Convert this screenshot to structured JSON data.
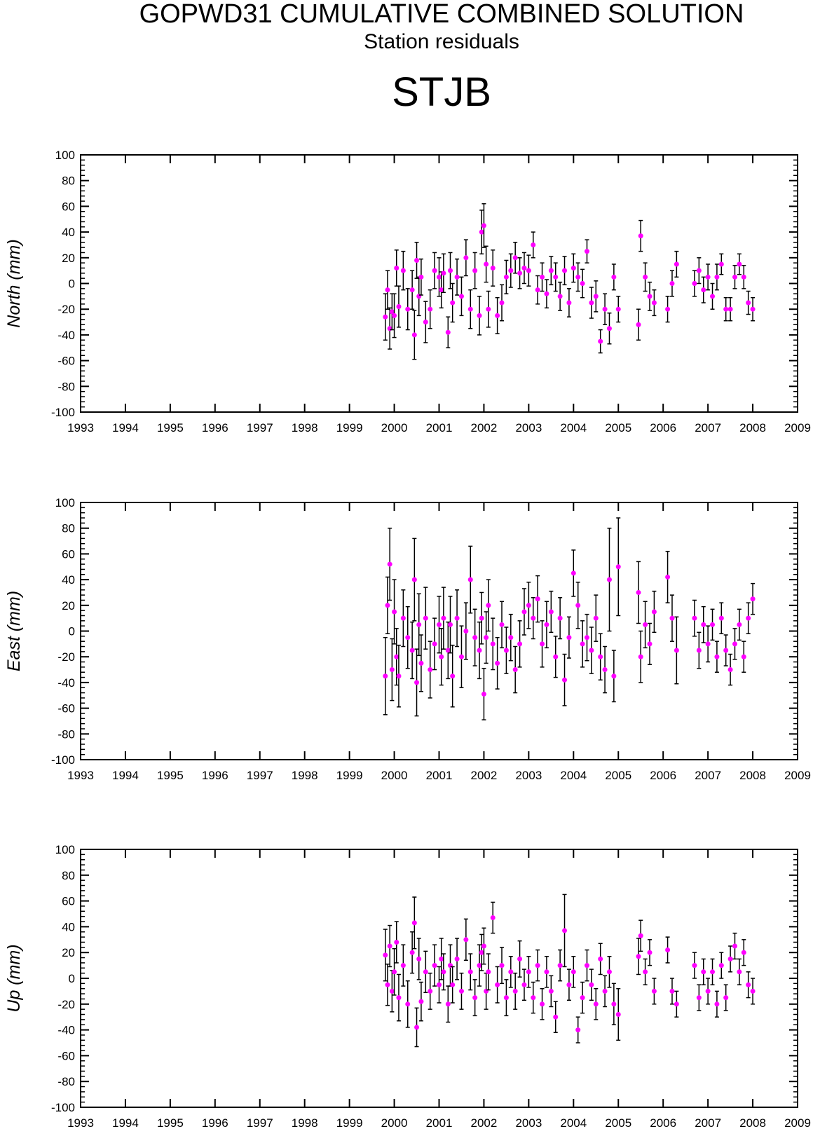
{
  "header": {
    "title": "GOPWD31 CUMULATIVE COMBINED SOLUTION",
    "subtitle": "Station residuals",
    "station": "STJB"
  },
  "colors": {
    "marker": "#ff00ff",
    "errorbar": "#000000",
    "axis": "#000000"
  },
  "chart_data": [
    {
      "type": "scatter",
      "component": "north",
      "ylabel": "North (mm)",
      "xlim": [
        1993,
        2009
      ],
      "ylim": [
        -100,
        100
      ],
      "x_ticks": [
        1993,
        1994,
        1995,
        1996,
        1997,
        1998,
        1999,
        2000,
        2001,
        2002,
        2003,
        2004,
        2005,
        2006,
        2007,
        2008,
        2009
      ],
      "y_ticks": [
        -100,
        -80,
        -60,
        -40,
        -20,
        0,
        20,
        40,
        60,
        80,
        100
      ],
      "grid": false,
      "error_bars": true,
      "series": [
        {
          "x": [
            1999.8,
            1999.85,
            1999.9,
            1999.95,
            2000.0,
            2000.05,
            2000.1,
            2000.2,
            2000.3,
            2000.4,
            2000.45,
            2000.5,
            2000.55,
            2000.6,
            2000.7,
            2000.8,
            2000.9,
            2001.0,
            2001.05,
            2001.1,
            2001.2,
            2001.25,
            2001.3,
            2001.4,
            2001.5,
            2001.6,
            2001.7,
            2001.8,
            2001.9,
            2001.95,
            2002.0,
            2002.05,
            2002.1,
            2002.2,
            2002.3,
            2002.4,
            2002.5,
            2002.6,
            2002.7,
            2002.8,
            2002.9,
            2003.0,
            2003.1,
            2003.2,
            2003.3,
            2003.4,
            2003.5,
            2003.6,
            2003.7,
            2003.8,
            2003.9,
            2004.0,
            2004.1,
            2004.2,
            2004.3,
            2004.4,
            2004.5,
            2004.6,
            2004.7,
            2004.8,
            2004.9,
            2005.0,
            2005.45,
            2005.5,
            2005.6,
            2005.7,
            2005.8,
            2006.1,
            2006.2,
            2006.3,
            2006.7,
            2006.8,
            2006.9,
            2007.0,
            2007.1,
            2007.2,
            2007.3,
            2007.4,
            2007.5,
            2007.6,
            2007.7,
            2007.8,
            2007.9,
            2008.0
          ],
          "y": [
            -26,
            -5,
            -35,
            -22,
            -25,
            12,
            -18,
            10,
            -20,
            -5,
            -40,
            18,
            -10,
            5,
            -30,
            -20,
            10,
            5,
            -5,
            8,
            -38,
            10,
            -15,
            5,
            -10,
            20,
            -20,
            10,
            -25,
            40,
            45,
            15,
            -20,
            12,
            -25,
            -15,
            5,
            10,
            20,
            8,
            12,
            10,
            30,
            -5,
            5,
            -8,
            10,
            5,
            -10,
            10,
            -15,
            12,
            5,
            0,
            25,
            -15,
            -10,
            -45,
            -20,
            -35,
            5,
            -20,
            -32,
            37,
            5,
            -10,
            -15,
            -20,
            0,
            15,
            0,
            10,
            -5,
            5,
            -10,
            5,
            15,
            -20,
            -20,
            5,
            15,
            5,
            -15,
            -20
          ],
          "err": [
            18,
            15,
            16,
            14,
            17,
            14,
            16,
            15,
            16,
            15,
            19,
            14,
            15,
            14,
            16,
            15,
            14,
            15,
            14,
            15,
            12,
            14,
            15,
            14,
            15,
            14,
            15,
            14,
            15,
            17,
            17,
            14,
            14,
            14,
            14,
            14,
            13,
            13,
            12,
            12,
            12,
            12,
            10,
            11,
            11,
            11,
            11,
            11,
            11,
            11,
            11,
            11,
            11,
            11,
            9,
            12,
            12,
            9,
            12,
            12,
            10,
            10,
            12,
            12,
            11,
            11,
            10,
            10,
            10,
            10,
            10,
            10,
            10,
            10,
            10,
            10,
            8,
            9,
            9,
            9,
            8,
            9,
            9,
            9
          ]
        }
      ]
    },
    {
      "type": "scatter",
      "component": "east",
      "ylabel": "East (mm)",
      "xlim": [
        1993,
        2009
      ],
      "ylim": [
        -100,
        100
      ],
      "x_ticks": [
        1993,
        1994,
        1995,
        1996,
        1997,
        1998,
        1999,
        2000,
        2001,
        2002,
        2003,
        2004,
        2005,
        2006,
        2007,
        2008,
        2009
      ],
      "y_ticks": [
        -100,
        -80,
        -60,
        -40,
        -20,
        0,
        20,
        40,
        60,
        80,
        100
      ],
      "grid": false,
      "error_bars": true,
      "series": [
        {
          "x": [
            1999.8,
            1999.85,
            1999.9,
            1999.95,
            2000.0,
            2000.05,
            2000.1,
            2000.2,
            2000.3,
            2000.4,
            2000.45,
            2000.5,
            2000.55,
            2000.6,
            2000.7,
            2000.8,
            2000.9,
            2001.0,
            2001.05,
            2001.1,
            2001.2,
            2001.25,
            2001.3,
            2001.4,
            2001.5,
            2001.6,
            2001.7,
            2001.8,
            2001.9,
            2001.95,
            2002.0,
            2002.05,
            2002.1,
            2002.2,
            2002.3,
            2002.4,
            2002.5,
            2002.6,
            2002.7,
            2002.8,
            2002.9,
            2003.0,
            2003.1,
            2003.2,
            2003.3,
            2003.4,
            2003.5,
            2003.6,
            2003.7,
            2003.8,
            2003.9,
            2004.0,
            2004.1,
            2004.2,
            2004.3,
            2004.4,
            2004.5,
            2004.6,
            2004.7,
            2004.8,
            2004.9,
            2005.0,
            2005.45,
            2005.5,
            2005.6,
            2005.7,
            2005.8,
            2006.1,
            2006.2,
            2006.3,
            2006.7,
            2006.8,
            2006.9,
            2007.0,
            2007.1,
            2007.2,
            2007.3,
            2007.4,
            2007.5,
            2007.6,
            2007.7,
            2007.8,
            2007.9,
            2008.0
          ],
          "y": [
            -35,
            20,
            52,
            -30,
            15,
            -20,
            -35,
            10,
            -5,
            -15,
            40,
            -40,
            5,
            -25,
            10,
            -30,
            -10,
            5,
            -20,
            10,
            -15,
            5,
            -35,
            10,
            -20,
            0,
            40,
            -5,
            -15,
            10,
            -49,
            -5,
            20,
            -10,
            -25,
            5,
            -15,
            -5,
            -30,
            -10,
            15,
            20,
            10,
            25,
            -10,
            5,
            15,
            -20,
            10,
            -38,
            -5,
            45,
            20,
            -10,
            -5,
            -15,
            10,
            -20,
            -30,
            40,
            -35,
            50,
            30,
            -20,
            5,
            -10,
            15,
            42,
            10,
            -15,
            10,
            -15,
            5,
            -10,
            5,
            -20,
            10,
            -15,
            -30,
            -10,
            5,
            -20,
            10,
            25
          ],
          "err": [
            30,
            22,
            28,
            24,
            25,
            22,
            24,
            22,
            24,
            22,
            32,
            26,
            24,
            22,
            24,
            22,
            20,
            22,
            22,
            24,
            22,
            22,
            24,
            22,
            24,
            22,
            26,
            22,
            22,
            20,
            20,
            20,
            20,
            20,
            20,
            18,
            18,
            18,
            18,
            18,
            18,
            18,
            16,
            18,
            18,
            18,
            16,
            16,
            16,
            20,
            16,
            18,
            18,
            18,
            18,
            18,
            18,
            18,
            18,
            40,
            20,
            38,
            24,
            20,
            18,
            16,
            16,
            20,
            18,
            26,
            14,
            14,
            14,
            14,
            12,
            12,
            12,
            12,
            12,
            12,
            12,
            12,
            12,
            12
          ]
        }
      ]
    },
    {
      "type": "scatter",
      "component": "up",
      "ylabel": "Up (mm)",
      "xlim": [
        1993,
        2009
      ],
      "ylim": [
        -100,
        100
      ],
      "x_ticks": [
        1993,
        1994,
        1995,
        1996,
        1997,
        1998,
        1999,
        2000,
        2001,
        2002,
        2003,
        2004,
        2005,
        2006,
        2007,
        2008,
        2009
      ],
      "y_ticks": [
        -100,
        -80,
        -60,
        -40,
        -20,
        0,
        20,
        40,
        60,
        80,
        100
      ],
      "grid": false,
      "error_bars": true,
      "series": [
        {
          "x": [
            1999.8,
            1999.85,
            1999.9,
            1999.95,
            2000.0,
            2000.05,
            2000.1,
            2000.2,
            2000.3,
            2000.4,
            2000.45,
            2000.5,
            2000.55,
            2000.6,
            2000.7,
            2000.8,
            2000.9,
            2001.0,
            2001.05,
            2001.1,
            2001.2,
            2001.25,
            2001.3,
            2001.4,
            2001.5,
            2001.6,
            2001.7,
            2001.8,
            2001.9,
            2001.95,
            2002.0,
            2002.05,
            2002.1,
            2002.2,
            2002.3,
            2002.4,
            2002.5,
            2002.6,
            2002.7,
            2002.8,
            2002.9,
            2003.0,
            2003.1,
            2003.2,
            2003.3,
            2003.4,
            2003.5,
            2003.6,
            2003.7,
            2003.8,
            2003.9,
            2004.0,
            2004.1,
            2004.2,
            2004.3,
            2004.4,
            2004.5,
            2004.6,
            2004.7,
            2004.8,
            2004.9,
            2005.0,
            2005.45,
            2005.5,
            2005.6,
            2005.7,
            2005.8,
            2006.1,
            2006.2,
            2006.3,
            2006.7,
            2006.8,
            2006.9,
            2007.0,
            2007.1,
            2007.2,
            2007.3,
            2007.4,
            2007.5,
            2007.6,
            2007.7,
            2007.8,
            2007.9,
            2008.0
          ],
          "y": [
            18,
            -5,
            25,
            -10,
            5,
            28,
            -15,
            10,
            -20,
            20,
            43,
            -38,
            15,
            -18,
            5,
            -10,
            10,
            -5,
            15,
            5,
            -20,
            10,
            -5,
            15,
            -10,
            30,
            5,
            -15,
            10,
            20,
            25,
            -10,
            5,
            47,
            -5,
            10,
            -15,
            5,
            -10,
            15,
            -5,
            5,
            -15,
            10,
            -20,
            5,
            -10,
            -30,
            10,
            37,
            -5,
            5,
            -40,
            -15,
            10,
            -5,
            -20,
            15,
            -10,
            5,
            -20,
            -28,
            17,
            33,
            5,
            20,
            -10,
            22,
            -10,
            -20,
            10,
            -15,
            5,
            -10,
            5,
            -20,
            10,
            -15,
            15,
            25,
            5,
            20,
            -5,
            -10
          ],
          "err": [
            20,
            16,
            16,
            16,
            18,
            16,
            18,
            16,
            18,
            16,
            20,
            15,
            16,
            15,
            16,
            14,
            16,
            14,
            16,
            14,
            14,
            16,
            14,
            16,
            14,
            16,
            14,
            14,
            16,
            14,
            14,
            14,
            14,
            12,
            14,
            14,
            14,
            12,
            14,
            14,
            12,
            12,
            12,
            12,
            12,
            12,
            12,
            12,
            12,
            28,
            12,
            12,
            10,
            12,
            12,
            12,
            12,
            12,
            12,
            12,
            16,
            20,
            14,
            12,
            10,
            10,
            10,
            10,
            10,
            10,
            10,
            10,
            10,
            10,
            10,
            10,
            10,
            10,
            10,
            10,
            10,
            10,
            10,
            10
          ]
        }
      ]
    }
  ]
}
